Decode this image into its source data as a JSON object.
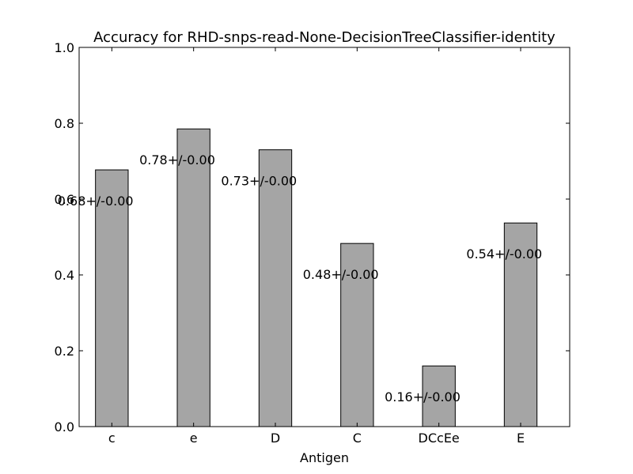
{
  "chart_data": {
    "type": "bar",
    "title": "Accuracy for RHD-snps-read-None-DecisionTreeClassifier-identity",
    "xlabel": "Antigen",
    "ylabel": "",
    "categories": [
      "c",
      "e",
      "D",
      "C",
      "DCcEe",
      "E"
    ],
    "values": [
      0.677,
      0.785,
      0.73,
      0.483,
      0.16,
      0.537
    ],
    "data_labels": [
      "0.68+/-0.00",
      "0.78+/-0.00",
      "0.73+/-0.00",
      "0.48+/-0.00",
      "0.16+/-0.00",
      "0.54+/-0.00"
    ],
    "ylim": [
      0.0,
      1.0
    ],
    "yticks": [
      "0.0",
      "0.2",
      "0.4",
      "0.6",
      "0.8",
      "1.0"
    ],
    "grid": false,
    "bar_color": "#a5a5a5",
    "edge_color": "#000000"
  }
}
